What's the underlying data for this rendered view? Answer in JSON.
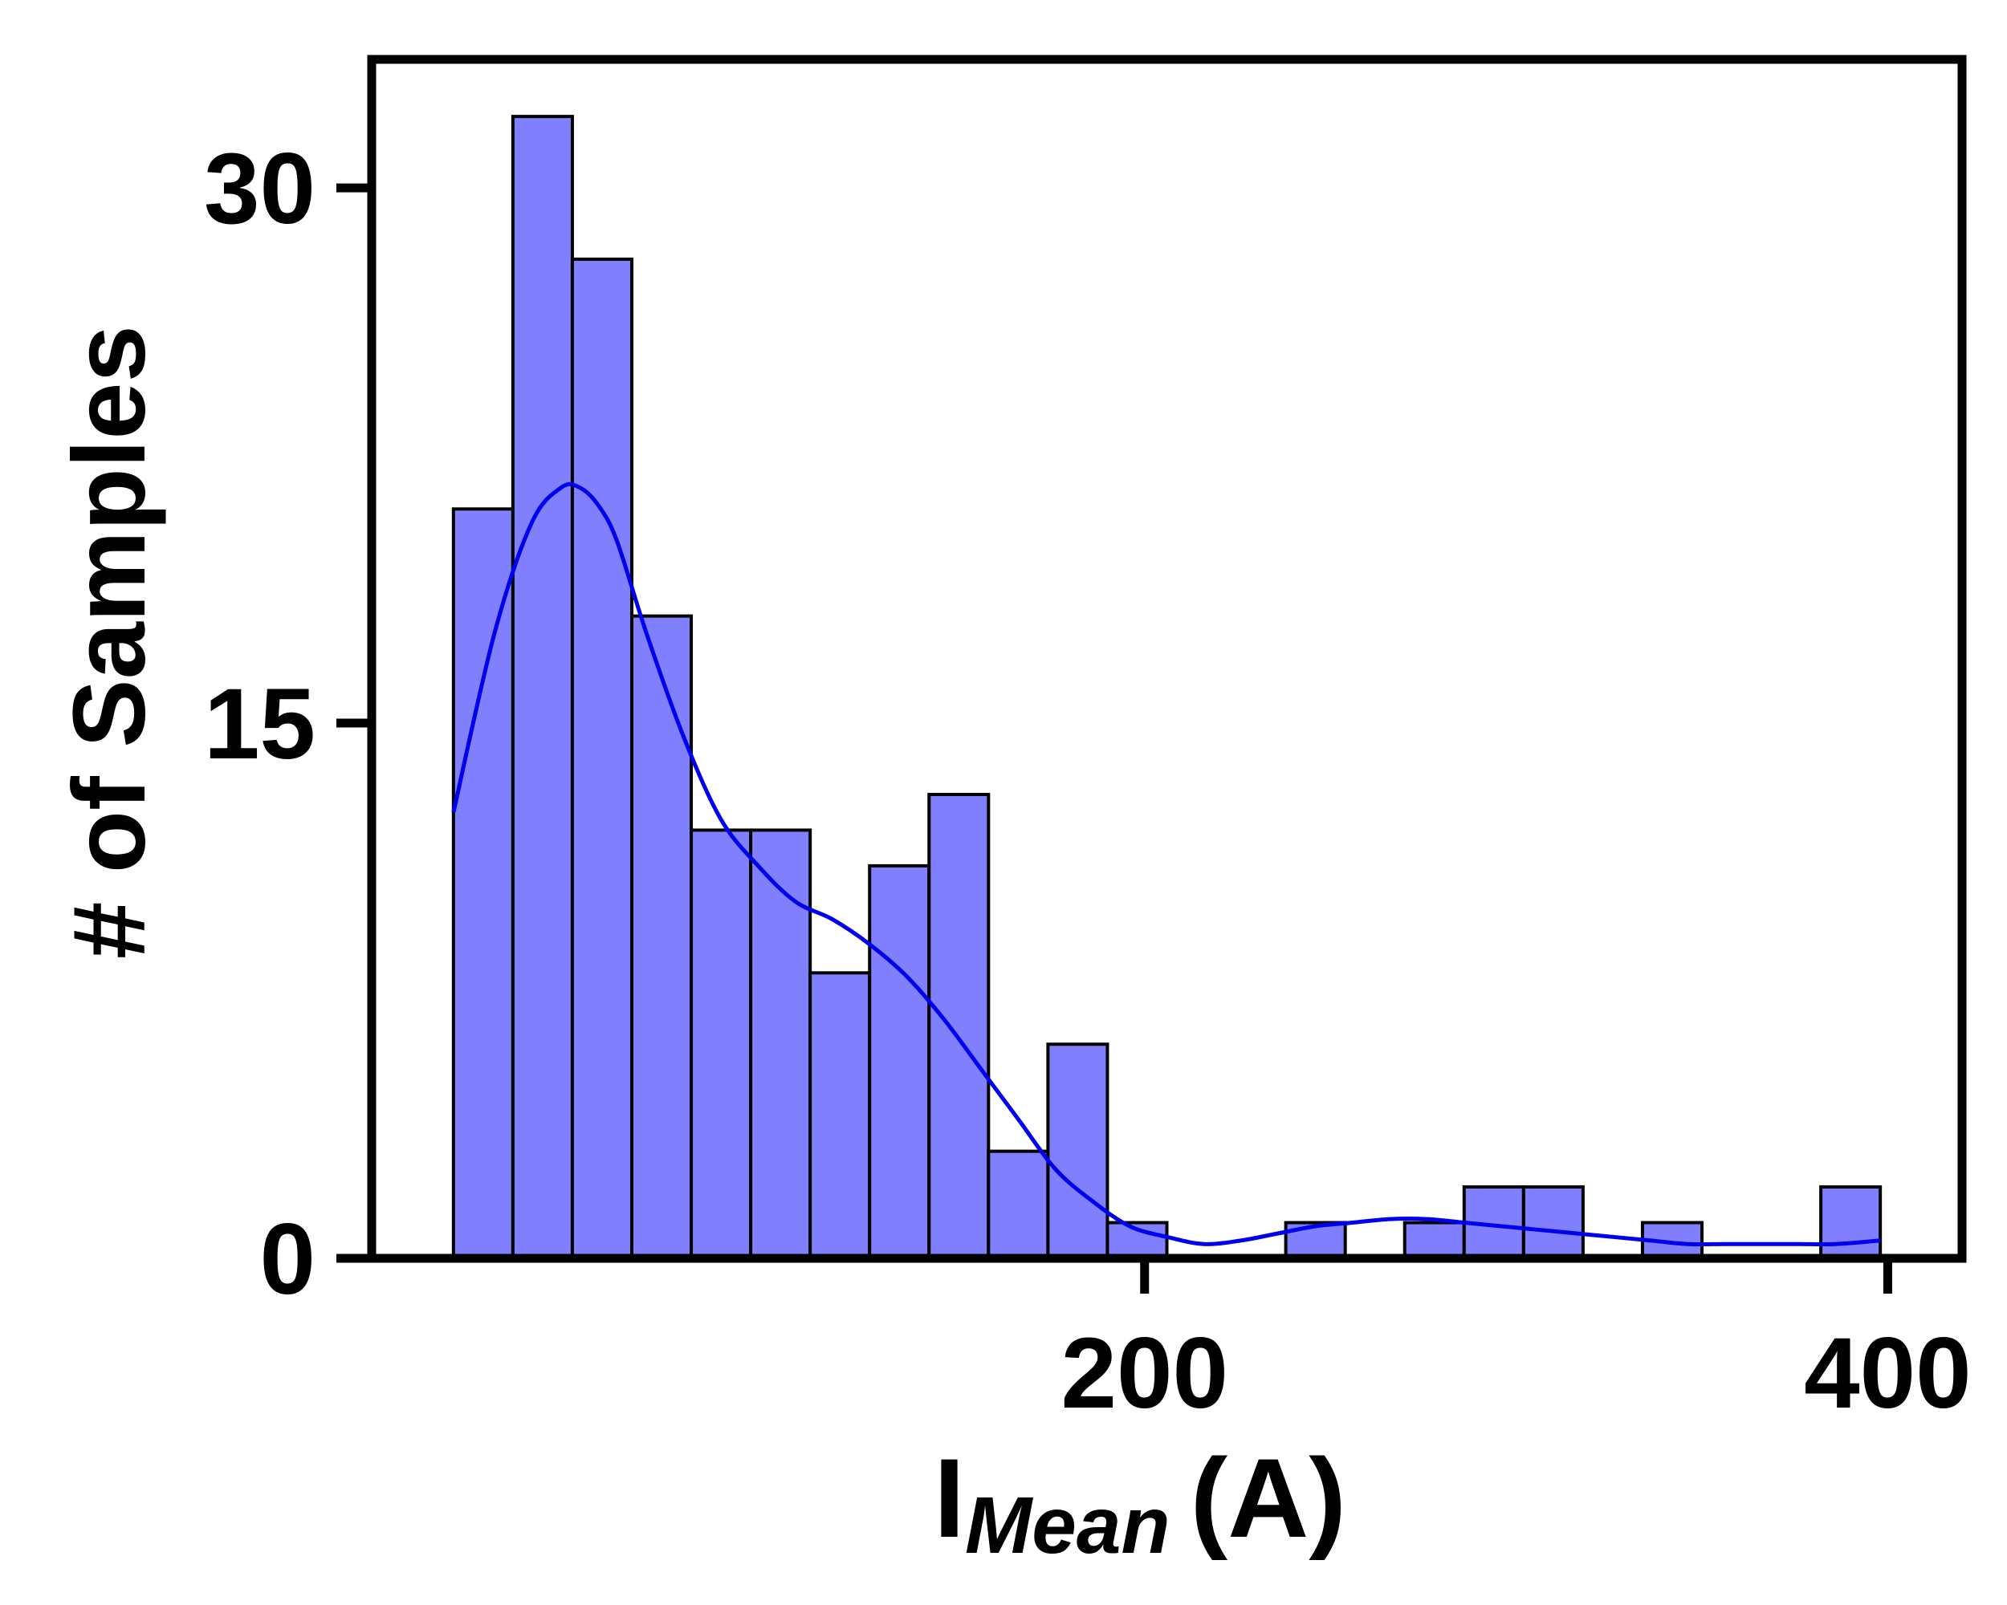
{
  "chart_data": {
    "type": "bar",
    "subtype": "histogram_with_kde",
    "title": "",
    "xlabel": "I",
    "xlabel_subscript": "Mean",
    "xlabel_unit": "(A)",
    "ylabel": "# of Samples",
    "xlim": [
      -8,
      420
    ],
    "ylim": [
      0,
      33.6
    ],
    "x_ticks": [
      200,
      400
    ],
    "x_tick_labels": [
      "200",
      "400"
    ],
    "y_ticks": [
      0,
      15,
      30
    ],
    "y_tick_labels": [
      "0",
      "15",
      "30"
    ],
    "grid": false,
    "legend": "none",
    "colors": {
      "bar_fill": "#8080ff",
      "bar_edge": "#000000",
      "kde_line": "#0000ee",
      "axes": "#000000"
    },
    "bins": [
      {
        "x0": 14,
        "x1": 30,
        "count": 21
      },
      {
        "x0": 30,
        "x1": 46,
        "count": 32
      },
      {
        "x0": 46,
        "x1": 62,
        "count": 28
      },
      {
        "x0": 62,
        "x1": 78,
        "count": 18
      },
      {
        "x0": 78,
        "x1": 94,
        "count": 12
      },
      {
        "x0": 94,
        "x1": 110,
        "count": 12
      },
      {
        "x0": 110,
        "x1": 126,
        "count": 8
      },
      {
        "x0": 126,
        "x1": 142,
        "count": 11
      },
      {
        "x0": 142,
        "x1": 158,
        "count": 13
      },
      {
        "x0": 158,
        "x1": 174,
        "count": 3
      },
      {
        "x0": 174,
        "x1": 190,
        "count": 6
      },
      {
        "x0": 190,
        "x1": 206,
        "count": 1
      },
      {
        "x0": 238,
        "x1": 254,
        "count": 1
      },
      {
        "x0": 270,
        "x1": 286,
        "count": 1
      },
      {
        "x0": 286,
        "x1": 302,
        "count": 2
      },
      {
        "x0": 302,
        "x1": 318,
        "count": 2
      },
      {
        "x0": 334,
        "x1": 350,
        "count": 1
      },
      {
        "x0": 382,
        "x1": 398,
        "count": 2
      }
    ],
    "kde": {
      "x": [
        14,
        25,
        35,
        43,
        48,
        53,
        58,
        66,
        76,
        86,
        96,
        106,
        116,
        126,
        136,
        146,
        156,
        166,
        176,
        186,
        196,
        206,
        216,
        226,
        236,
        246,
        256,
        266,
        276,
        286,
        296,
        306,
        316,
        326,
        336,
        346,
        356,
        366,
        376,
        386,
        398
      ],
      "y": [
        12.5,
        17.5,
        20.6,
        21.6,
        21.6,
        21.1,
        20.1,
        17.5,
        14.6,
        12.3,
        11.0,
        10.0,
        9.5,
        8.8,
        7.9,
        6.7,
        5.3,
        3.9,
        2.5,
        1.6,
        0.9,
        0.6,
        0.4,
        0.5,
        0.7,
        0.9,
        1.0,
        1.1,
        1.1,
        1.0,
        0.9,
        0.8,
        0.7,
        0.6,
        0.5,
        0.4,
        0.4,
        0.4,
        0.4,
        0.4,
        0.5
      ]
    }
  }
}
